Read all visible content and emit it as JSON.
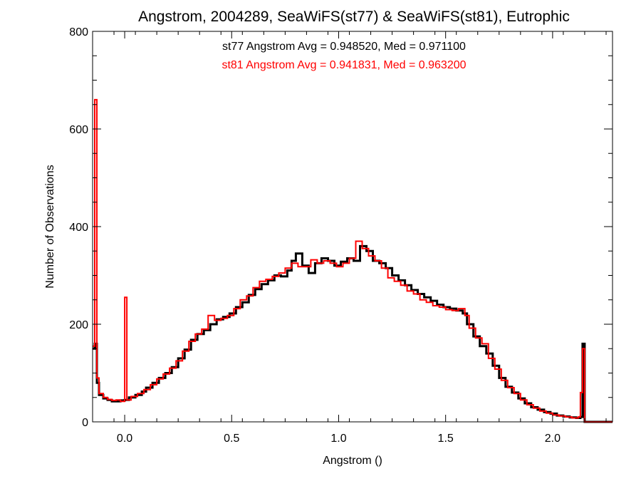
{
  "chart_data": {
    "type": "histogram-step",
    "title": "Angstrom, 2004289, SeaWiFS(st77) & SeaWiFS(st81), Eutrophic",
    "xlabel": "Angstrom ()",
    "ylabel": "Number of Observations",
    "xlim": [
      -0.15,
      2.28
    ],
    "ylim": [
      0,
      800
    ],
    "xticks": [
      0.0,
      0.5,
      1.0,
      1.5,
      2.0
    ],
    "xtick_labels": [
      "0.0",
      "0.5",
      "1.0",
      "1.5",
      "2.0"
    ],
    "yticks": [
      0,
      200,
      400,
      600,
      800
    ],
    "ytick_labels": [
      "0",
      "200",
      "400",
      "600",
      "800"
    ],
    "grid": false,
    "annotations": [
      {
        "text": "st77 Angstrom Avg = 0.948520, Med = 0.971100",
        "color": "#000000"
      },
      {
        "text": "st81 Angstrom Avg = 0.941831, Med = 0.963200",
        "color": "#ff0000"
      }
    ],
    "series": [
      {
        "color": "#000000",
        "points": [
          [
            -0.15,
            150
          ],
          [
            -0.14,
            160
          ],
          [
            -0.13,
            80
          ],
          [
            -0.12,
            55
          ],
          [
            -0.1,
            48
          ],
          [
            -0.08,
            45
          ],
          [
            -0.06,
            42
          ],
          [
            -0.04,
            42
          ],
          [
            -0.02,
            44
          ],
          [
            0.0,
            45
          ],
          [
            0.02,
            50
          ],
          [
            0.05,
            55
          ],
          [
            0.08,
            62
          ],
          [
            0.1,
            70
          ],
          [
            0.13,
            80
          ],
          [
            0.16,
            90
          ],
          [
            0.19,
            100
          ],
          [
            0.22,
            112
          ],
          [
            0.25,
            130
          ],
          [
            0.28,
            148
          ],
          [
            0.31,
            168
          ],
          [
            0.34,
            180
          ],
          [
            0.37,
            188
          ],
          [
            0.4,
            200
          ],
          [
            0.43,
            210
          ],
          [
            0.46,
            215
          ],
          [
            0.49,
            222
          ],
          [
            0.52,
            235
          ],
          [
            0.55,
            245
          ],
          [
            0.58,
            260
          ],
          [
            0.61,
            272
          ],
          [
            0.64,
            282
          ],
          [
            0.67,
            290
          ],
          [
            0.7,
            300
          ],
          [
            0.73,
            298
          ],
          [
            0.76,
            310
          ],
          [
            0.78,
            330
          ],
          [
            0.8,
            345
          ],
          [
            0.83,
            320
          ],
          [
            0.86,
            305
          ],
          [
            0.89,
            325
          ],
          [
            0.92,
            335
          ],
          [
            0.95,
            330
          ],
          [
            0.98,
            320
          ],
          [
            1.01,
            328
          ],
          [
            1.04,
            335
          ],
          [
            1.07,
            330
          ],
          [
            1.1,
            360
          ],
          [
            1.13,
            350
          ],
          [
            1.16,
            330
          ],
          [
            1.19,
            325
          ],
          [
            1.22,
            315
          ],
          [
            1.25,
            300
          ],
          [
            1.28,
            290
          ],
          [
            1.31,
            280
          ],
          [
            1.34,
            270
          ],
          [
            1.37,
            262
          ],
          [
            1.4,
            255
          ],
          [
            1.43,
            248
          ],
          [
            1.46,
            240
          ],
          [
            1.49,
            235
          ],
          [
            1.52,
            232
          ],
          [
            1.55,
            228
          ],
          [
            1.58,
            222
          ],
          [
            1.6,
            200
          ],
          [
            1.63,
            175
          ],
          [
            1.66,
            155
          ],
          [
            1.69,
            140
          ],
          [
            1.72,
            115
          ],
          [
            1.75,
            90
          ],
          [
            1.78,
            72
          ],
          [
            1.81,
            60
          ],
          [
            1.84,
            48
          ],
          [
            1.87,
            38
          ],
          [
            1.9,
            30
          ],
          [
            1.93,
            25
          ],
          [
            1.96,
            20
          ],
          [
            1.99,
            17
          ],
          [
            2.02,
            13
          ],
          [
            2.05,
            11
          ],
          [
            2.08,
            9
          ],
          [
            2.11,
            8
          ],
          [
            2.13,
            10
          ],
          [
            2.14,
            160
          ],
          [
            2.15,
            0
          ],
          [
            2.28,
            0
          ]
        ]
      },
      {
        "color": "#ff0000",
        "points": [
          [
            -0.15,
            155
          ],
          [
            -0.14,
            660
          ],
          [
            -0.13,
            90
          ],
          [
            -0.12,
            58
          ],
          [
            -0.1,
            50
          ],
          [
            -0.08,
            46
          ],
          [
            -0.06,
            44
          ],
          [
            -0.04,
            45
          ],
          [
            -0.02,
            42
          ],
          [
            0.0,
            255
          ],
          [
            0.01,
            45
          ],
          [
            0.03,
            52
          ],
          [
            0.06,
            58
          ],
          [
            0.09,
            66
          ],
          [
            0.12,
            76
          ],
          [
            0.15,
            88
          ],
          [
            0.18,
            98
          ],
          [
            0.21,
            110
          ],
          [
            0.24,
            125
          ],
          [
            0.27,
            145
          ],
          [
            0.3,
            165
          ],
          [
            0.33,
            180
          ],
          [
            0.36,
            190
          ],
          [
            0.39,
            218
          ],
          [
            0.42,
            208
          ],
          [
            0.45,
            212
          ],
          [
            0.48,
            218
          ],
          [
            0.51,
            232
          ],
          [
            0.54,
            250
          ],
          [
            0.57,
            258
          ],
          [
            0.6,
            275
          ],
          [
            0.63,
            288
          ],
          [
            0.66,
            292
          ],
          [
            0.69,
            298
          ],
          [
            0.72,
            305
          ],
          [
            0.75,
            315
          ],
          [
            0.78,
            325
          ],
          [
            0.81,
            318
          ],
          [
            0.84,
            318
          ],
          [
            0.87,
            332
          ],
          [
            0.9,
            325
          ],
          [
            0.93,
            330
          ],
          [
            0.96,
            325
          ],
          [
            0.99,
            318
          ],
          [
            1.02,
            325
          ],
          [
            1.05,
            335
          ],
          [
            1.08,
            370
          ],
          [
            1.11,
            355
          ],
          [
            1.14,
            340
          ],
          [
            1.17,
            330
          ],
          [
            1.2,
            315
          ],
          [
            1.23,
            295
          ],
          [
            1.26,
            288
          ],
          [
            1.29,
            280
          ],
          [
            1.32,
            268
          ],
          [
            1.35,
            262
          ],
          [
            1.38,
            250
          ],
          [
            1.41,
            245
          ],
          [
            1.44,
            238
          ],
          [
            1.47,
            235
          ],
          [
            1.5,
            230
          ],
          [
            1.53,
            228
          ],
          [
            1.56,
            232
          ],
          [
            1.59,
            218
          ],
          [
            1.61,
            192
          ],
          [
            1.64,
            172
          ],
          [
            1.67,
            160
          ],
          [
            1.7,
            130
          ],
          [
            1.73,
            108
          ],
          [
            1.76,
            85
          ],
          [
            1.79,
            70
          ],
          [
            1.82,
            58
          ],
          [
            1.85,
            45
          ],
          [
            1.88,
            35
          ],
          [
            1.91,
            28
          ],
          [
            1.94,
            22
          ],
          [
            1.97,
            18
          ],
          [
            2.0,
            14
          ],
          [
            2.03,
            12
          ],
          [
            2.06,
            10
          ],
          [
            2.09,
            8
          ],
          [
            2.12,
            10
          ],
          [
            2.13,
            60
          ],
          [
            2.14,
            150
          ],
          [
            2.15,
            0
          ],
          [
            2.28,
            0
          ]
        ]
      }
    ]
  }
}
